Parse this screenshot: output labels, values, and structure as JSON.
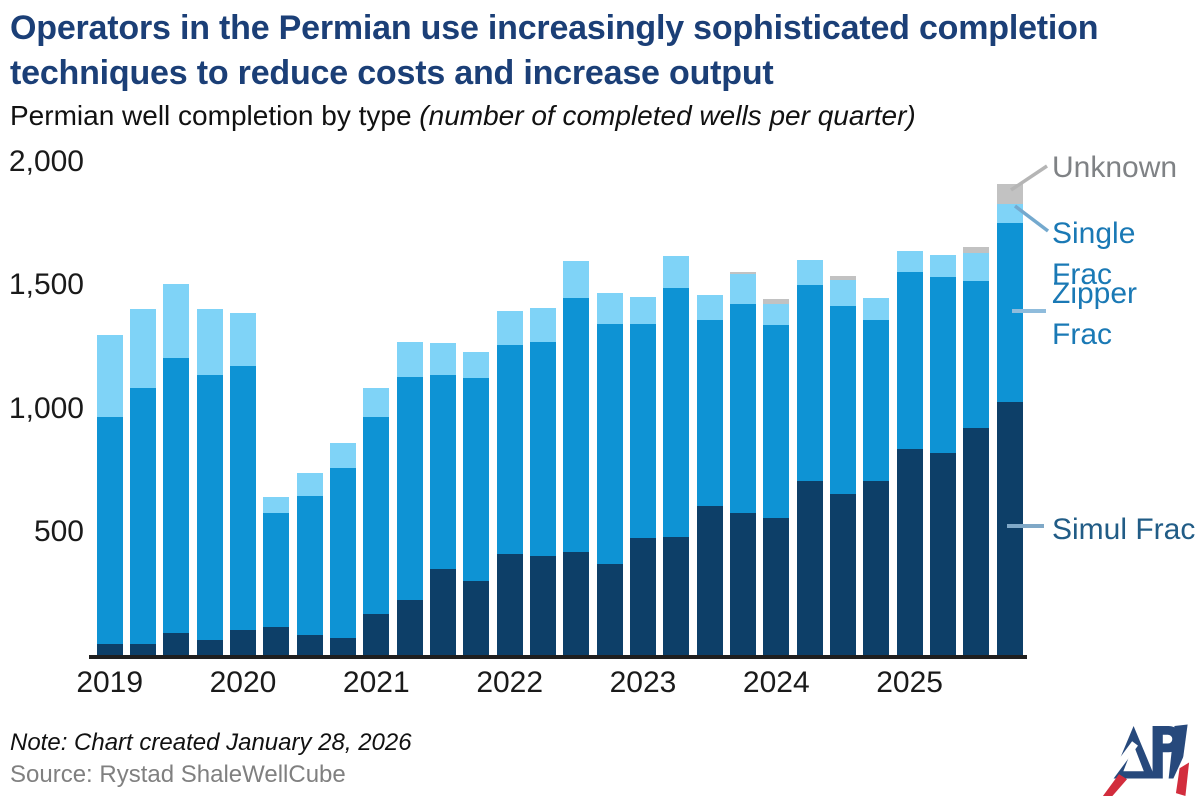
{
  "header": {
    "title": "Operators in the Permian use increasingly sophisticated completion\ntechniques to reduce costs and increase output",
    "subtitle_plain": "Permian well completion by type ",
    "subtitle_italic": "(number of completed wells per quarter)"
  },
  "chart_data": {
    "type": "bar",
    "stacked": true,
    "title": "Permian well completion by type",
    "ylabel": "number of completed wells per quarter",
    "grid": false,
    "legend_position": "right",
    "categories": [
      "2019 Q1",
      "2019 Q2",
      "2019 Q3",
      "2019 Q4",
      "2020 Q1",
      "2020 Q2",
      "2020 Q3",
      "2020 Q4",
      "2021 Q1",
      "2021 Q2",
      "2021 Q3",
      "2021 Q4",
      "2022 Q1",
      "2022 Q2",
      "2022 Q3",
      "2022 Q4",
      "2023 Q1",
      "2023 Q2",
      "2023 Q3",
      "2023 Q4",
      "2024 Q1",
      "2024 Q2",
      "2024 Q3",
      "2024 Q4",
      "2025 Q1",
      "2025 Q2",
      "2025 Q3",
      "2025 Q4"
    ],
    "series": [
      {
        "name": "Simul Frac",
        "color": "#0d3f68",
        "values": [
          45,
          45,
          90,
          60,
          100,
          115,
          80,
          70,
          165,
          225,
          350,
          300,
          410,
          400,
          420,
          370,
          475,
          480,
          605,
          575,
          555,
          705,
          655,
          705,
          835,
          820,
          920,
          1025
        ]
      },
      {
        "name": "Zipper Frac",
        "color": "#0e93d4",
        "values": [
          920,
          1040,
          1115,
          1075,
          1075,
          460,
          565,
          690,
          800,
          905,
          785,
          825,
          850,
          870,
          1030,
          975,
          870,
          1010,
          755,
          850,
          785,
          795,
          760,
          655,
          720,
          715,
          600,
          730
        ]
      },
      {
        "name": "Single Frac",
        "color": "#7fd3f7",
        "values": [
          335,
          320,
          300,
          270,
          215,
          65,
          95,
          100,
          120,
          140,
          130,
          105,
          135,
          140,
          150,
          125,
          110,
          130,
          100,
          120,
          85,
          105,
          105,
          90,
          85,
          90,
          110,
          75
        ]
      },
      {
        "name": "Unknown",
        "color": "#c2c2c2",
        "values": [
          0,
          0,
          0,
          0,
          0,
          0,
          0,
          0,
          0,
          0,
          0,
          0,
          0,
          0,
          0,
          0,
          0,
          0,
          0,
          10,
          20,
          0,
          20,
          0,
          0,
          0,
          25,
          80
        ]
      }
    ],
    "totals": [
      1300,
      1405,
      1505,
      1405,
      1390,
      640,
      740,
      860,
      1085,
      1270,
      1265,
      1230,
      1395,
      1410,
      1600,
      1470,
      1455,
      1620,
      1460,
      1555,
      1445,
      1605,
      1540,
      1450,
      1640,
      1625,
      1655,
      1910
    ],
    "y_axis": {
      "ticks": [
        {
          "label": "500",
          "value": 500
        },
        {
          "label": "1,000",
          "value": 1000
        },
        {
          "label": "1,500",
          "value": 1500
        },
        {
          "label": "2,000",
          "value": 2000
        }
      ],
      "min": 0,
      "max": 2000
    },
    "x_axis": {
      "years": [
        "2019",
        "2020",
        "2021",
        "2022",
        "2023",
        "2024",
        "2025"
      ]
    }
  },
  "legend": {
    "items": [
      {
        "label": "Unknown",
        "color": "#7f8285"
      },
      {
        "label": "Single Frac",
        "color": "#1a79b5"
      },
      {
        "label": "Zipper Frac",
        "color": "#1a79b5"
      },
      {
        "label": "Simul Frac",
        "color": "#215c86"
      }
    ]
  },
  "footer": {
    "note": "Note: Chart created January 28, 2026",
    "source": "Source: Rystad ShaleWellCube",
    "logo_text": "API"
  },
  "colors": {
    "title": "#1b3f77",
    "simul_frac": "#0d3f68",
    "zipper_frac": "#0e93d4",
    "single_frac": "#7fd3f7",
    "unknown": "#c2c2c2",
    "logo_navy": "#27497c",
    "logo_red": "#d22d3d"
  }
}
